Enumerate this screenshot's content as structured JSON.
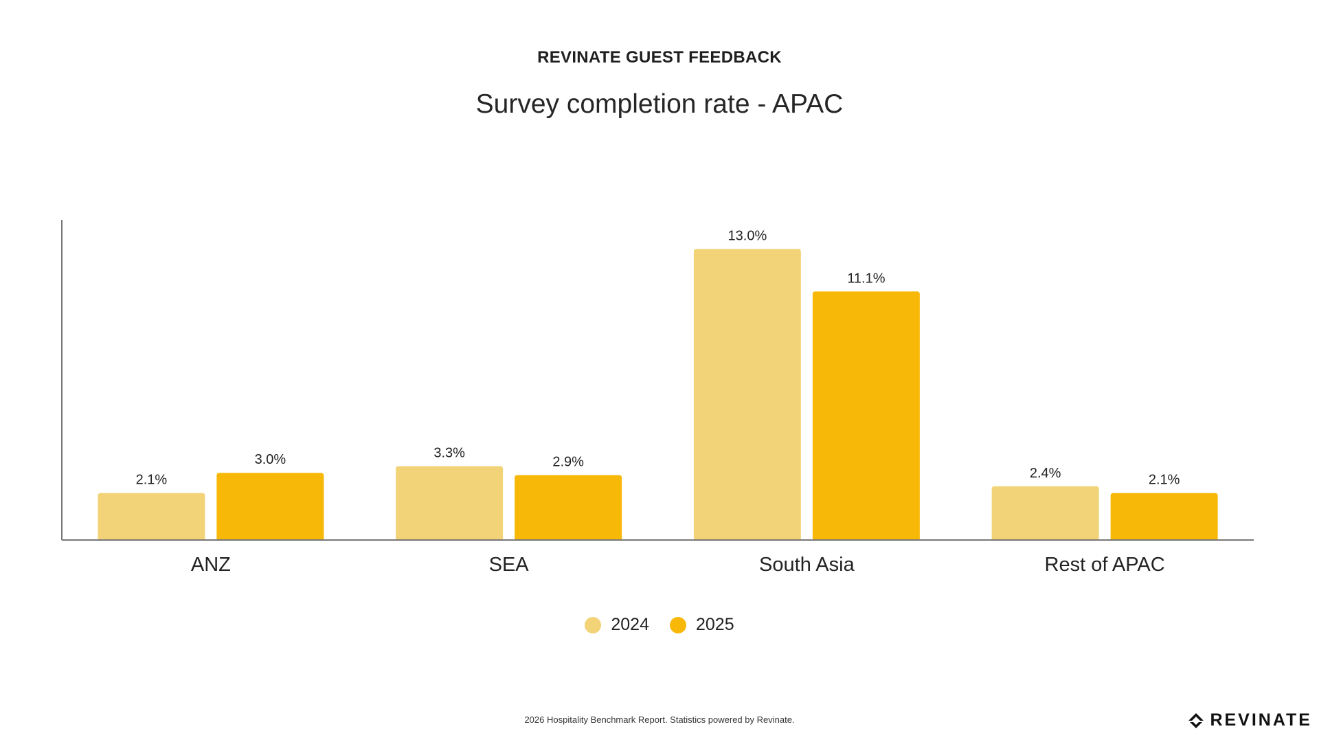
{
  "header": {
    "eyebrow": "REVINATE GUEST FEEDBACK",
    "title": "Survey completion rate - APAC"
  },
  "footer": {
    "note": "2026 Hospitality Benchmark Report. Statistics powered by Revinate.",
    "logo_text": "REVINATE"
  },
  "colors": {
    "series_2024": "#F3D377",
    "series_2025": "#F7B808",
    "axis": "#777777"
  },
  "chart_data": {
    "type": "bar",
    "title": "Survey completion rate - APAC",
    "xlabel": "",
    "ylabel": "",
    "categories": [
      "ANZ",
      "SEA",
      "South Asia",
      "Rest of APAC"
    ],
    "series": [
      {
        "name": "2024",
        "values": [
          2.1,
          3.3,
          13.0,
          2.4
        ],
        "labels": [
          "2.1%",
          "3.3%",
          "13.0%",
          "2.4%"
        ]
      },
      {
        "name": "2025",
        "values": [
          3.0,
          2.9,
          11.1,
          2.1
        ],
        "labels": [
          "3.0%",
          "2.9%",
          "11.1%",
          "2.1%"
        ]
      }
    ],
    "ylim": [
      0,
      14.3
    ],
    "grid": false,
    "legend": "bottom-center"
  }
}
